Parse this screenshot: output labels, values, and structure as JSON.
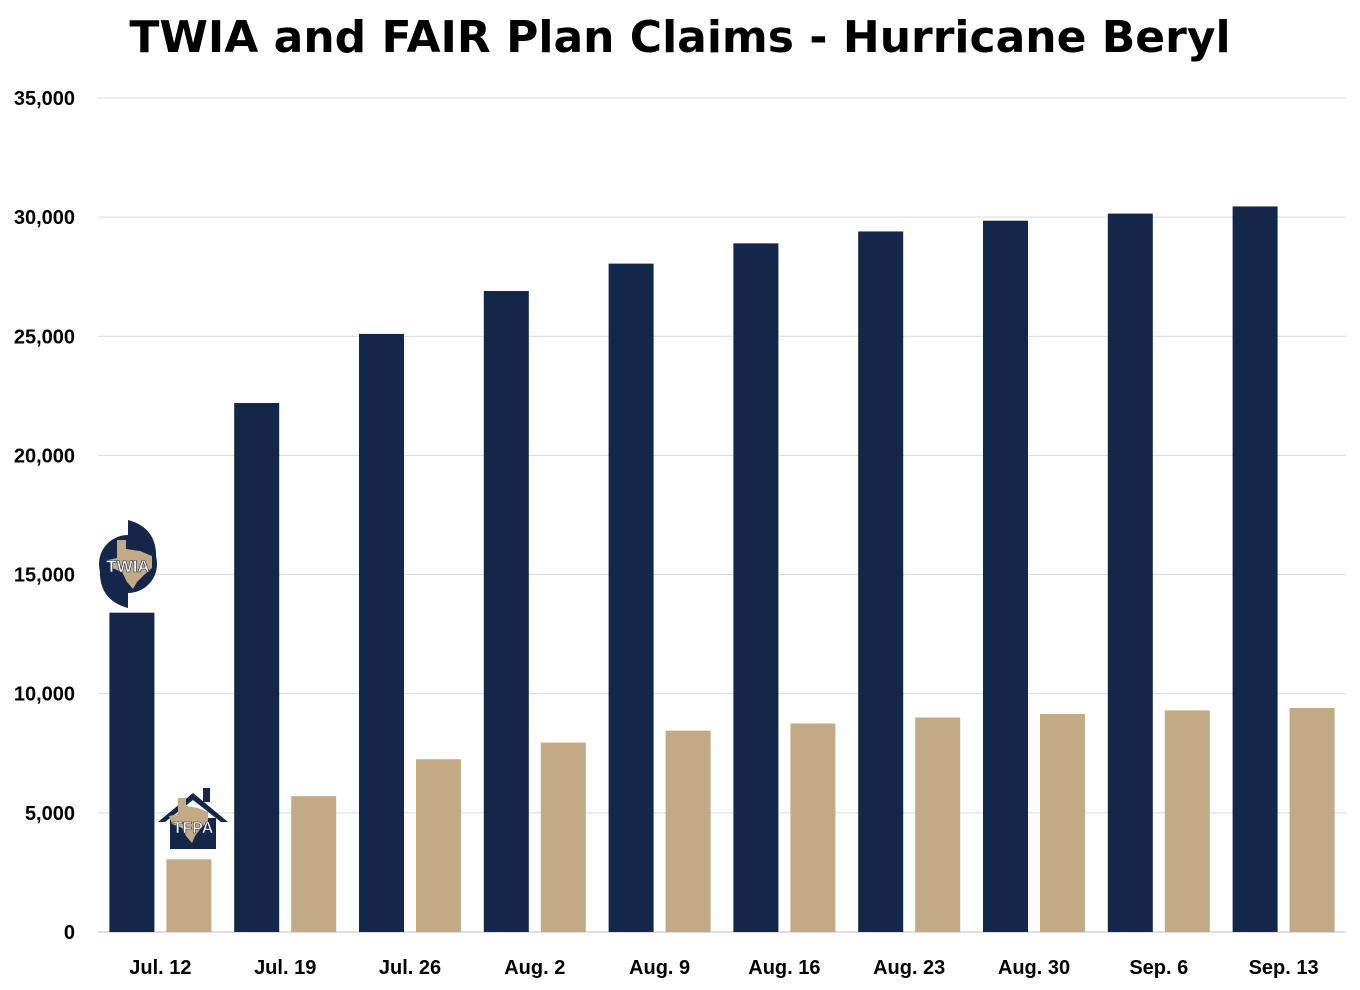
{
  "chart_data": {
    "type": "bar",
    "title": "TWIA and FAIR Plan Claims - Hurricane Beryl",
    "xlabel": "",
    "ylabel": "",
    "categories": [
      "Jul. 12",
      "Jul. 19",
      "Jul. 26",
      "Aug. 2",
      "Aug. 9",
      "Aug. 16",
      "Aug. 23",
      "Aug. 30",
      "Sep. 6",
      "Sep. 13"
    ],
    "series": [
      {
        "name": "TWIA",
        "color": "#14274a",
        "values": [
          13400,
          22200,
          25100,
          26900,
          28050,
          28900,
          29400,
          29850,
          30150,
          30450
        ]
      },
      {
        "name": "TFPA",
        "color": "#c4a985",
        "values": [
          3050,
          5700,
          7250,
          7950,
          8450,
          8750,
          9000,
          9150,
          9300,
          9400
        ]
      }
    ],
    "ylim": [
      0,
      35000
    ],
    "yticks": [
      0,
      5000,
      10000,
      15000,
      20000,
      25000,
      30000,
      35000
    ],
    "grid": true,
    "legend": "logos above first group"
  },
  "logos": {
    "twia": {
      "text": "TWIA",
      "icon": "twia-hurricane-texas-logo"
    },
    "tfpa": {
      "text": "TFPA",
      "icon": "tfpa-house-texas-logo"
    }
  }
}
